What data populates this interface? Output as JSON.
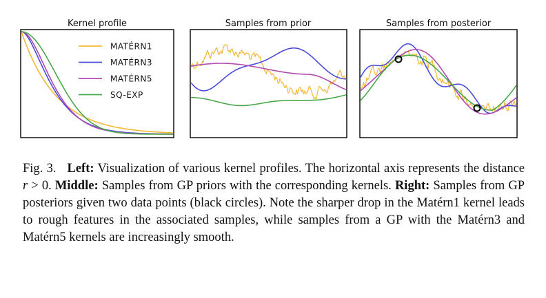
{
  "figure": {
    "panels": [
      {
        "title": "Kernel profile"
      },
      {
        "title": "Samples from prior"
      },
      {
        "title": "Samples from posterior"
      }
    ],
    "legend": [
      {
        "label": "MATÉRN1",
        "color": "#f5b731"
      },
      {
        "label": "MATÉRN3",
        "color": "#4b4bdc"
      },
      {
        "label": "MATÉRN5",
        "color": "#b04ab0"
      },
      {
        "label": "SQ-EXP",
        "color": "#4aa84a"
      }
    ]
  },
  "chart_data": [
    {
      "type": "line",
      "title": "Kernel profile",
      "xlabel": "",
      "ylabel": "",
      "x": [
        0,
        0.5,
        1,
        1.5,
        2,
        2.5,
        3,
        3.5,
        4
      ],
      "series": [
        {
          "name": "MATÉRN1",
          "values": [
            1.0,
            0.61,
            0.37,
            0.22,
            0.14,
            0.08,
            0.05,
            0.03,
            0.02
          ]
        },
        {
          "name": "MATÉRN3",
          "values": [
            1.0,
            0.79,
            0.48,
            0.27,
            0.14,
            0.07,
            0.04,
            0.02,
            0.01
          ]
        },
        {
          "name": "MATÉRN5",
          "values": [
            1.0,
            0.84,
            0.52,
            0.27,
            0.12,
            0.05,
            0.02,
            0.01,
            0.0
          ]
        },
        {
          "name": "SQ-EXP",
          "values": [
            1.0,
            0.88,
            0.61,
            0.32,
            0.14,
            0.04,
            0.01,
            0.0,
            0.0
          ]
        }
      ]
    },
    {
      "type": "line",
      "title": "Samples from prior",
      "xlabel": "",
      "ylabel": ""
    },
    {
      "type": "line",
      "title": "Samples from posterior",
      "xlabel": "",
      "ylabel": "",
      "annotations": [
        "two data points (black circles)"
      ]
    }
  ],
  "caption": {
    "fig_label": "Fig. 3.",
    "left_head": "Left:",
    "left_text": " Visualization of various kernel profiles. The horizontal axis represents the distance ",
    "math_r": "r",
    "math_rel": " > 0",
    "sentence_end": ". ",
    "middle_head": "Middle:",
    "middle_text": " Samples from GP priors with the corresponding kernels. ",
    "right_head": "Right:",
    "right_text": " Samples from GP posteriors given two data points (black circles). Note the sharper drop in the Matérn1 kernel leads to rough features in the associated samples, while samples from a GP with the Matérn3 and Matérn5 kernels are increasingly smooth."
  }
}
